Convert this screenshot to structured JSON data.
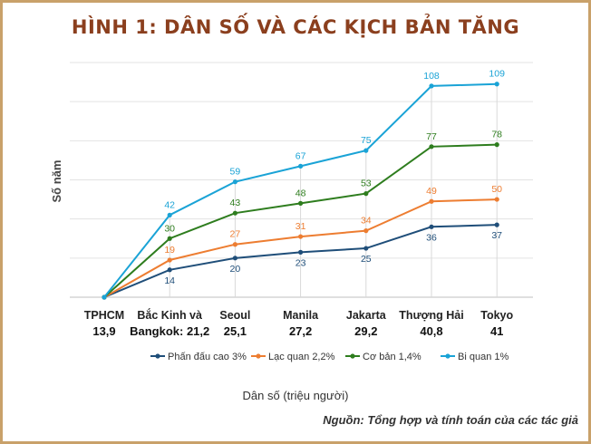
{
  "title": "HÌNH 1: DÂN SỐ VÀ CÁC KỊCH BẢN TĂNG",
  "source": "Nguồn: Tổng hợp và tính toán của các tác giả",
  "chart_data": {
    "type": "line",
    "xlabel": "Dân số (triệu người)",
    "ylabel": "Số năm",
    "categories": [
      {
        "name": "TPHCM",
        "name2": "",
        "value": "13,9"
      },
      {
        "name": "Bắc Kinh và",
        "name2": "Bangkok: 21,2",
        "value": ""
      },
      {
        "name": "Seoul",
        "name2": "",
        "value": "25,1"
      },
      {
        "name": "Manila",
        "name2": "",
        "value": "27,2"
      },
      {
        "name": "Jakarta",
        "name2": "",
        "value": "29,2"
      },
      {
        "name": "Thượng Hải",
        "name2": "",
        "value": "40,8"
      },
      {
        "name": "Tokyo",
        "name2": "",
        "value": "41"
      }
    ],
    "ylim": [
      0,
      120
    ],
    "grid": true,
    "legend_position": "bottom",
    "series": [
      {
        "name": "Phấn đấu cao 3%",
        "color": "#1f4e79",
        "values": [
          0,
          14,
          20,
          23,
          25,
          36,
          37
        ]
      },
      {
        "name": "Lạc quan 2,2%",
        "color": "#ed7d31",
        "values": [
          0,
          19,
          27,
          31,
          34,
          49,
          50
        ]
      },
      {
        "name": "Cơ bản 1,4%",
        "color": "#2e7d1e",
        "values": [
          0,
          30,
          43,
          48,
          53,
          77,
          78
        ]
      },
      {
        "name": "Bi quan 1%",
        "color": "#1aa3d6",
        "values": [
          0,
          42,
          59,
          67,
          75,
          108,
          109
        ]
      }
    ]
  }
}
